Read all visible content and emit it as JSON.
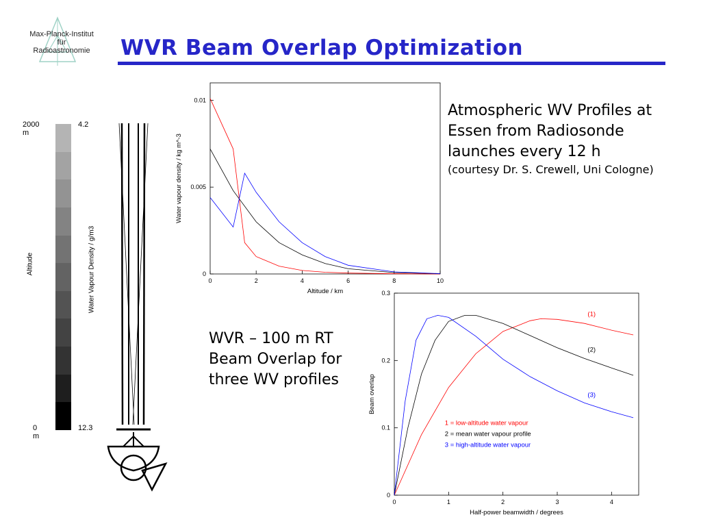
{
  "logo": {
    "line1": "Max-Planck-Institut",
    "line2": "für",
    "line3": "Radioastronomie"
  },
  "title": "WVR Beam Overlap Optimization",
  "profiles_caption": {
    "line1": "Atmospheric WV Profiles at",
    "line2": "Essen from Radiosonde",
    "line3": "launches every 12 h",
    "credit": "(courtesy Dr. S. Crewell, Uni Cologne)"
  },
  "overlap_caption": {
    "line1": "WVR – 100 m RT",
    "line2": "Beam Overlap for",
    "line3": "three WV profiles"
  },
  "colorbar": {
    "top_altitude": "2000 m",
    "bottom_altitude": "0 m",
    "top_value": "4.2",
    "bottom_value": "12.3",
    "left_label": "Altitude",
    "right_label": "Water Vapour Density / g/m3",
    "shades": [
      "#b4b4b4",
      "#a3a3a3",
      "#939393",
      "#838383",
      "#737373",
      "#636363",
      "#535353",
      "#434343",
      "#333333",
      "#1e1e1e",
      "#000000"
    ]
  },
  "chart_data": [
    {
      "type": "line",
      "xlabel": "Altitude / km",
      "ylabel": "Water vapour density / kg m^-3",
      "xlim": [
        0,
        10
      ],
      "ylim": [
        0,
        0.011
      ],
      "xticks": [
        "0",
        "2",
        "4",
        "6",
        "8",
        "10"
      ],
      "yticks": [
        "0",
        "0.005",
        "0.01"
      ],
      "xtick_values": [
        0,
        2,
        4,
        6,
        8,
        10
      ],
      "ytick_values": [
        0,
        0.005,
        0.01
      ],
      "grid": false,
      "series": [
        {
          "color": "#ff0000",
          "x": [
            0,
            1,
            1.5,
            2,
            3,
            4,
            5,
            6,
            8,
            10
          ],
          "y": [
            0.0101,
            0.0072,
            0.0018,
            0.001,
            0.00045,
            0.0002,
            0.0001,
            5e-05,
            1e-05,
            0
          ]
        },
        {
          "color": "#000000",
          "x": [
            0,
            1,
            2,
            3,
            4,
            5,
            6,
            8,
            10
          ],
          "y": [
            0.0072,
            0.0048,
            0.003,
            0.0018,
            0.0011,
            0.0006,
            0.0003,
            8e-05,
            1e-05
          ]
        },
        {
          "color": "#0000ff",
          "x": [
            0,
            1,
            1.5,
            2,
            3,
            4,
            5,
            6,
            8,
            10
          ],
          "y": [
            0.0044,
            0.0027,
            0.0058,
            0.0047,
            0.003,
            0.0018,
            0.001,
            0.0005,
            0.00012,
            2e-05
          ]
        }
      ]
    },
    {
      "type": "line",
      "xlabel": "Half-power beamwidth / degrees",
      "ylabel": "Beam overlap",
      "xlim": [
        0,
        4.5
      ],
      "ylim": [
        0,
        0.3
      ],
      "xticks": [
        "0",
        "1",
        "2",
        "3",
        "4"
      ],
      "yticks": [
        "0",
        "0.1",
        "0.2",
        "0.3"
      ],
      "xtick_values": [
        0,
        1,
        2,
        3,
        4
      ],
      "ytick_values": [
        0,
        0.1,
        0.2,
        0.3
      ],
      "grid": false,
      "legend": [
        {
          "text": "1 = low-altitude water vapour",
          "color": "#ff0000"
        },
        {
          "text": "2 = mean water vapour profile",
          "color": "#000000"
        },
        {
          "text": "3 = high-altitude water vapour",
          "color": "#0000ff"
        }
      ],
      "series": [
        {
          "name": "(1)",
          "color": "#ff0000",
          "x": [
            0,
            0.5,
            1,
            1.5,
            2,
            2.5,
            2.7,
            3,
            3.5,
            4,
            4.4
          ],
          "y": [
            0,
            0.09,
            0.16,
            0.21,
            0.243,
            0.259,
            0.262,
            0.261,
            0.255,
            0.245,
            0.238
          ]
        },
        {
          "name": "(2)",
          "color": "#000000",
          "x": [
            0,
            0.25,
            0.5,
            0.75,
            1,
            1.3,
            1.5,
            2,
            2.5,
            3,
            3.5,
            4,
            4.4
          ],
          "y": [
            0,
            0.1,
            0.18,
            0.23,
            0.258,
            0.267,
            0.267,
            0.255,
            0.237,
            0.219,
            0.203,
            0.189,
            0.178
          ]
        },
        {
          "name": "(3)",
          "color": "#0000ff",
          "x": [
            0,
            0.2,
            0.4,
            0.6,
            0.8,
            1,
            1.5,
            2,
            2.5,
            3,
            3.5,
            4,
            4.4
          ],
          "y": [
            0,
            0.14,
            0.23,
            0.262,
            0.267,
            0.264,
            0.236,
            0.202,
            0.176,
            0.155,
            0.137,
            0.124,
            0.115
          ]
        }
      ]
    }
  ]
}
